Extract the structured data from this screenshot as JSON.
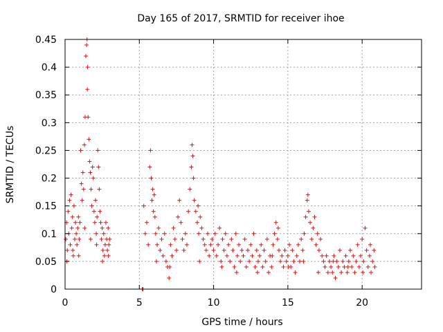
{
  "chart_data": {
    "type": "scatter",
    "title": "Day 165 of 2017, SRMTID for receiver ihoe",
    "xlabel": "GPS time / hours",
    "ylabel": "SRMTID / TECUs",
    "xlim": [
      0,
      24
    ],
    "ylim": [
      0,
      0.45
    ],
    "x_ticks": [
      0,
      5,
      10,
      15,
      20
    ],
    "x_tick_labels": [
      "0",
      "5",
      "10",
      "15",
      "20"
    ],
    "y_ticks": [
      0,
      0.05,
      0.1,
      0.15,
      0.2,
      0.25,
      0.3,
      0.35,
      0.4,
      0.45
    ],
    "y_tick_labels": [
      "0",
      "0.05",
      "0.1",
      "0.15",
      "0.2",
      "0.25",
      "0.3",
      "0.35",
      "0.4",
      "0.45"
    ],
    "grid": true,
    "marker": "+",
    "color": "#ff0000",
    "series": [
      {
        "name": "SRMTID",
        "points": [
          [
            0.05,
            0.09
          ],
          [
            0.1,
            0.12
          ],
          [
            0.15,
            0.07
          ],
          [
            0.2,
            0.14
          ],
          [
            0.25,
            0.1
          ],
          [
            0.3,
            0.16
          ],
          [
            0.35,
            0.08
          ],
          [
            0.4,
            0.17
          ],
          [
            0.45,
            0.11
          ],
          [
            0.5,
            0.13
          ],
          [
            0.55,
            0.06
          ],
          [
            0.6,
            0.15
          ],
          [
            0.65,
            0.09
          ],
          [
            0.7,
            0.12
          ],
          [
            0.75,
            0.1
          ],
          [
            0.8,
            0.08
          ],
          [
            0.85,
            0.11
          ],
          [
            0.9,
            0.13
          ],
          [
            0.95,
            0.09
          ],
          [
            1.0,
            0.12
          ],
          [
            1.05,
            0.25
          ],
          [
            1.1,
            0.19
          ],
          [
            1.15,
            0.16
          ],
          [
            1.2,
            0.21
          ],
          [
            1.25,
            0.18
          ],
          [
            1.3,
            0.26
          ],
          [
            1.35,
            0.31
          ],
          [
            1.4,
            0.42
          ],
          [
            1.45,
            0.44
          ],
          [
            1.48,
            0.45
          ],
          [
            1.5,
            0.36
          ],
          [
            1.52,
            0.4
          ],
          [
            1.55,
            0.31
          ],
          [
            1.6,
            0.27
          ],
          [
            1.65,
            0.23
          ],
          [
            1.7,
            0.21
          ],
          [
            1.75,
            0.18
          ],
          [
            1.8,
            0.15
          ],
          [
            1.85,
            0.22
          ],
          [
            1.9,
            0.2
          ],
          [
            1.95,
            0.14
          ],
          [
            2.0,
            0.12
          ],
          [
            2.05,
            0.16
          ],
          [
            2.1,
            0.1
          ],
          [
            2.15,
            0.13
          ],
          [
            2.2,
            0.25
          ],
          [
            2.25,
            0.22
          ],
          [
            2.3,
            0.18
          ],
          [
            2.35,
            0.14
          ],
          [
            2.4,
            0.12
          ],
          [
            2.45,
            0.09
          ],
          [
            2.5,
            0.11
          ],
          [
            2.55,
            0.07
          ],
          [
            2.6,
            0.1
          ],
          [
            2.65,
            0.06
          ],
          [
            2.7,
            0.08
          ],
          [
            2.75,
            0.12
          ],
          [
            2.8,
            0.09
          ],
          [
            2.85,
            0.07
          ],
          [
            2.9,
            0.11
          ],
          [
            2.95,
            0.08
          ],
          [
            3.0,
            0.09
          ],
          [
            0.12,
            0.05
          ],
          [
            0.52,
            0.07
          ],
          [
            0.92,
            0.06
          ],
          [
            1.32,
            0.11
          ],
          [
            1.72,
            0.09
          ],
          [
            2.12,
            0.08
          ],
          [
            2.52,
            0.05
          ],
          [
            2.92,
            0.06
          ],
          [
            5.2,
            0.0
          ],
          [
            5.25,
            0.0
          ],
          [
            5.3,
            0.15
          ],
          [
            5.4,
            0.1
          ],
          [
            5.5,
            0.12
          ],
          [
            5.6,
            0.08
          ],
          [
            5.7,
            0.22
          ],
          [
            5.75,
            0.25
          ],
          [
            5.8,
            0.2
          ],
          [
            5.85,
            0.16
          ],
          [
            5.9,
            0.18
          ],
          [
            5.95,
            0.14
          ],
          [
            6.0,
            0.17
          ],
          [
            6.05,
            0.13
          ],
          [
            6.1,
            0.1
          ],
          [
            6.2,
            0.08
          ],
          [
            6.3,
            0.11
          ],
          [
            6.4,
            0.07
          ],
          [
            6.5,
            0.09
          ],
          [
            6.6,
            0.06
          ],
          [
            6.7,
            0.1
          ],
          [
            6.8,
            0.05
          ],
          [
            6.9,
            0.04
          ],
          [
            7.0,
            0.02
          ],
          [
            7.1,
            0.08
          ],
          [
            7.2,
            0.06
          ],
          [
            7.3,
            0.11
          ],
          [
            7.4,
            0.09
          ],
          [
            7.5,
            0.07
          ],
          [
            7.6,
            0.13
          ],
          [
            7.7,
            0.16
          ],
          [
            7.8,
            0.12
          ],
          [
            7.9,
            0.09
          ],
          [
            8.0,
            0.07
          ],
          [
            8.1,
            0.1
          ],
          [
            8.2,
            0.08
          ],
          [
            8.3,
            0.14
          ],
          [
            8.4,
            0.18
          ],
          [
            8.5,
            0.22
          ],
          [
            8.55,
            0.26
          ],
          [
            8.6,
            0.24
          ],
          [
            8.65,
            0.2
          ],
          [
            8.7,
            0.16
          ],
          [
            8.8,
            0.14
          ],
          [
            8.9,
            0.12
          ],
          [
            9.0,
            0.1
          ],
          [
            9.1,
            0.13
          ],
          [
            9.2,
            0.11
          ],
          [
            9.3,
            0.09
          ],
          [
            9.4,
            0.08
          ],
          [
            9.5,
            0.07
          ],
          [
            9.6,
            0.1
          ],
          [
            9.7,
            0.06
          ],
          [
            9.8,
            0.08
          ],
          [
            9.9,
            0.09
          ],
          [
            10.0,
            0.07
          ],
          [
            10.1,
            0.1
          ],
          [
            10.2,
            0.06
          ],
          [
            10.3,
            0.08
          ],
          [
            10.4,
            0.11
          ],
          [
            10.5,
            0.05
          ],
          [
            10.6,
            0.09
          ],
          [
            10.7,
            0.07
          ],
          [
            10.8,
            0.1
          ],
          [
            10.9,
            0.06
          ],
          [
            11.0,
            0.08
          ],
          [
            11.1,
            0.05
          ],
          [
            11.2,
            0.09
          ],
          [
            11.3,
            0.07
          ],
          [
            11.4,
            0.04
          ],
          [
            11.5,
            0.1
          ],
          [
            11.6,
            0.06
          ],
          [
            11.7,
            0.08
          ],
          [
            11.8,
            0.05
          ],
          [
            11.9,
            0.07
          ],
          [
            12.0,
            0.06
          ],
          [
            12.1,
            0.09
          ],
          [
            12.2,
            0.04
          ],
          [
            12.3,
            0.07
          ],
          [
            12.4,
            0.05
          ],
          [
            12.5,
            0.08
          ],
          [
            12.6,
            0.06
          ],
          [
            12.7,
            0.1
          ],
          [
            12.8,
            0.04
          ],
          [
            12.9,
            0.07
          ],
          [
            13.0,
            0.05
          ],
          [
            13.1,
            0.06
          ],
          [
            13.2,
            0.08
          ],
          [
            13.3,
            0.04
          ],
          [
            13.4,
            0.07
          ],
          [
            13.5,
            0.05
          ],
          [
            13.6,
            0.09
          ],
          [
            13.7,
            0.03
          ],
          [
            13.8,
            0.06
          ],
          [
            13.9,
            0.04
          ],
          [
            14.0,
            0.08
          ],
          [
            14.1,
            0.1
          ],
          [
            14.2,
            0.12
          ],
          [
            14.3,
            0.09
          ],
          [
            14.4,
            0.07
          ],
          [
            14.5,
            0.05
          ],
          [
            14.6,
            0.06
          ],
          [
            14.7,
            0.04
          ],
          [
            14.8,
            0.07
          ],
          [
            14.9,
            0.05
          ],
          [
            15.0,
            0.06
          ],
          [
            15.1,
            0.08
          ],
          [
            15.2,
            0.04
          ],
          [
            15.3,
            0.07
          ],
          [
            15.4,
            0.05
          ],
          [
            15.5,
            0.03
          ],
          [
            15.6,
            0.06
          ],
          [
            15.7,
            0.08
          ],
          [
            15.8,
            0.05
          ],
          [
            15.9,
            0.09
          ],
          [
            16.0,
            0.07
          ],
          [
            16.1,
            0.1
          ],
          [
            16.2,
            0.13
          ],
          [
            16.3,
            0.16
          ],
          [
            16.35,
            0.17
          ],
          [
            16.4,
            0.14
          ],
          [
            16.5,
            0.12
          ],
          [
            16.6,
            0.09
          ],
          [
            16.7,
            0.11
          ],
          [
            16.8,
            0.13
          ],
          [
            16.9,
            0.08
          ],
          [
            17.0,
            0.1
          ],
          [
            17.1,
            0.07
          ],
          [
            17.2,
            0.09
          ],
          [
            17.3,
            0.06
          ],
          [
            17.4,
            0.05
          ],
          [
            17.5,
            0.04
          ],
          [
            17.6,
            0.06
          ],
          [
            17.7,
            0.03
          ],
          [
            17.8,
            0.05
          ],
          [
            17.9,
            0.04
          ],
          [
            18.0,
            0.03
          ],
          [
            18.1,
            0.06
          ],
          [
            18.2,
            0.02
          ],
          [
            18.3,
            0.05
          ],
          [
            18.4,
            0.04
          ],
          [
            18.5,
            0.07
          ],
          [
            18.6,
            0.03
          ],
          [
            18.7,
            0.05
          ],
          [
            18.8,
            0.04
          ],
          [
            18.9,
            0.06
          ],
          [
            19.0,
            0.03
          ],
          [
            19.1,
            0.05
          ],
          [
            19.2,
            0.07
          ],
          [
            19.3,
            0.04
          ],
          [
            19.4,
            0.06
          ],
          [
            19.5,
            0.03
          ],
          [
            19.6,
            0.05
          ],
          [
            19.7,
            0.08
          ],
          [
            19.8,
            0.04
          ],
          [
            19.9,
            0.06
          ],
          [
            20.0,
            0.09
          ],
          [
            20.1,
            0.05
          ],
          [
            20.2,
            0.11
          ],
          [
            20.3,
            0.07
          ],
          [
            20.4,
            0.04
          ],
          [
            20.5,
            0.06
          ],
          [
            20.6,
            0.03
          ],
          [
            20.7,
            0.05
          ],
          [
            20.8,
            0.07
          ],
          [
            20.85,
            0.04
          ],
          [
            6.15,
            0.05
          ],
          [
            7.05,
            0.04
          ],
          [
            9.05,
            0.05
          ],
          [
            10.55,
            0.04
          ],
          [
            11.55,
            0.03
          ],
          [
            12.95,
            0.03
          ],
          [
            13.95,
            0.06
          ],
          [
            15.05,
            0.04
          ],
          [
            16.05,
            0.05
          ],
          [
            17.05,
            0.03
          ],
          [
            18.05,
            0.05
          ],
          [
            19.05,
            0.04
          ],
          [
            20.05,
            0.03
          ],
          [
            20.55,
            0.08
          ],
          [
            14.35,
            0.11
          ],
          [
            8.95,
            0.15
          ]
        ]
      }
    ]
  }
}
